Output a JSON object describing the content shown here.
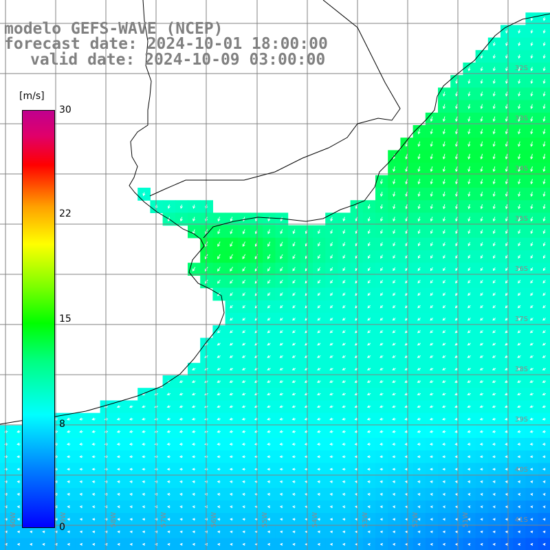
{
  "title": {
    "line1": "modelo GEFS-WAVE (NCEP)",
    "line2": "forecast date: 2024-10-01 18:00:00",
    "line3": "valid date: 2024-10-09 03:00:00"
  },
  "colorbar": {
    "unit": "[m/s]",
    "ticks": [
      "30",
      "22",
      "15",
      "8",
      "0"
    ],
    "colors": [
      "#0000ff",
      "#0080ff",
      "#00ffff",
      "#00ff80",
      "#00ff00",
      "#80ff00",
      "#ffff00",
      "#ffa000",
      "#ff0000",
      "#e0006a",
      "#c0008f"
    ]
  },
  "map": {
    "latitude_labels": [
      "32S",
      "33S",
      "34S",
      "35S",
      "36S",
      "37S",
      "38S",
      "39S",
      "40S",
      "41S"
    ],
    "longitude_labels": [
      "60W",
      "59W",
      "58W",
      "57W",
      "56W",
      "55W",
      "54W",
      "53W",
      "52W",
      "51W"
    ],
    "wind_direction": "from the north-east toward the south-west",
    "colors": {
      "land": "#ffffff",
      "grid": "#808080",
      "coast": "#000000",
      "arrows": "#ffffff"
    }
  }
}
